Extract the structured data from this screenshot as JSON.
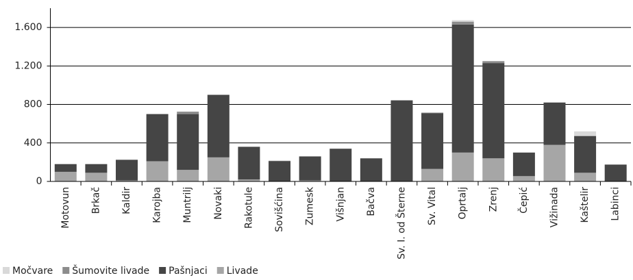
{
  "chart_data": {
    "type": "stacked_bar",
    "categories": [
      "Motovun",
      "Brkač",
      "Kaldir",
      "Karojba",
      "Muntrilj",
      "Novaki",
      "Rakotule",
      "Sovišćina",
      "Zumesk",
      "Višnjan",
      "Bačva",
      "Sv. I. od Šterne",
      "Sv. Vital",
      "Oprtalj",
      "Zrenj",
      "Čepić",
      "Vižinada",
      "Kaštelir",
      "Labinci"
    ],
    "series": [
      {
        "name": "Močvare",
        "color": "#d9d9d9",
        "values": [
          0,
          0,
          0,
          0,
          0,
          0,
          0,
          0,
          0,
          0,
          0,
          0,
          0,
          15,
          0,
          0,
          0,
          45,
          0
        ]
      },
      {
        "name": "Šumovite livade",
        "color": "#8c8c8c",
        "values": [
          0,
          0,
          0,
          0,
          25,
          0,
          0,
          5,
          0,
          0,
          0,
          5,
          5,
          30,
          20,
          0,
          0,
          5,
          0
        ]
      },
      {
        "name": "Pašnjaci",
        "color": "#454545",
        "values": [
          80,
          90,
          215,
          490,
          580,
          650,
          340,
          210,
          250,
          340,
          240,
          840,
          580,
          1330,
          990,
          245,
          440,
          380,
          175
        ]
      },
      {
        "name": "Livade",
        "color": "#a6a6a6",
        "values": [
          100,
          90,
          10,
          210,
          120,
          250,
          20,
          0,
          10,
          0,
          0,
          0,
          130,
          300,
          240,
          55,
          380,
          90,
          0
        ]
      }
    ],
    "ylim": [
      0,
      1800
    ],
    "yticks": [
      0,
      400,
      800,
      {
        "value": 1200,
        "label": "1.200"
      },
      {
        "value": 1600,
        "label": "1.600"
      }
    ],
    "grid": true
  }
}
